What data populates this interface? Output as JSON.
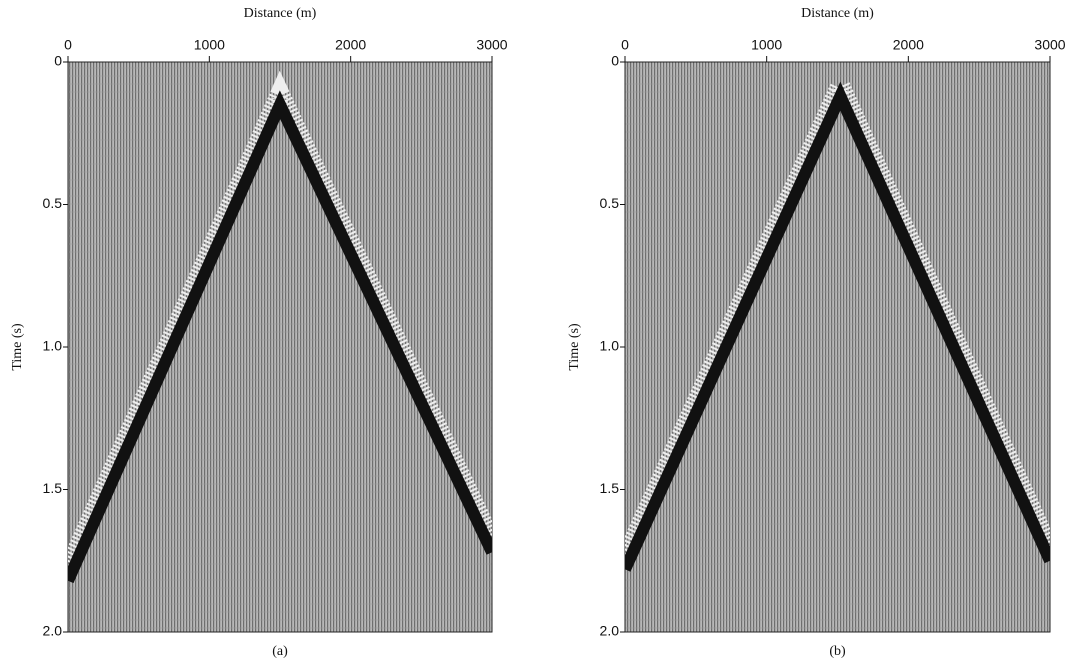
{
  "chart_data": [
    {
      "type": "line",
      "caption": "(a)",
      "xlabel": "Distance (m)",
      "ylabel": "Time (s)",
      "x": [
        0,
        1500,
        3000
      ],
      "values": [
        1.82,
        0.15,
        1.72
      ],
      "color": "#111111",
      "xlim": [
        0,
        3000
      ],
      "xticks": [
        0,
        1000,
        2000,
        3000
      ],
      "ylim": [
        2.0,
        0
      ],
      "yticks": [
        0,
        0.5,
        {
          "value": 1.0,
          "label": "1.0"
        },
        1.5,
        {
          "value": 2.0,
          "label": "2.0"
        }
      ]
    },
    {
      "type": "line",
      "caption": "(b)",
      "xlabel": "Distance (m)",
      "ylabel": "Time (s)",
      "x": [
        0,
        1520,
        3000
      ],
      "values": [
        1.78,
        0.12,
        1.75
      ],
      "color": "#111111",
      "xlim": [
        0,
        3000
      ],
      "xticks": [
        0,
        1000,
        2000,
        3000
      ],
      "ylim": [
        2.0,
        0
      ],
      "yticks": [
        0,
        0.5,
        {
          "value": 1.0,
          "label": "1.0"
        },
        1.5,
        {
          "value": 2.0,
          "label": "2.0"
        }
      ]
    }
  ]
}
